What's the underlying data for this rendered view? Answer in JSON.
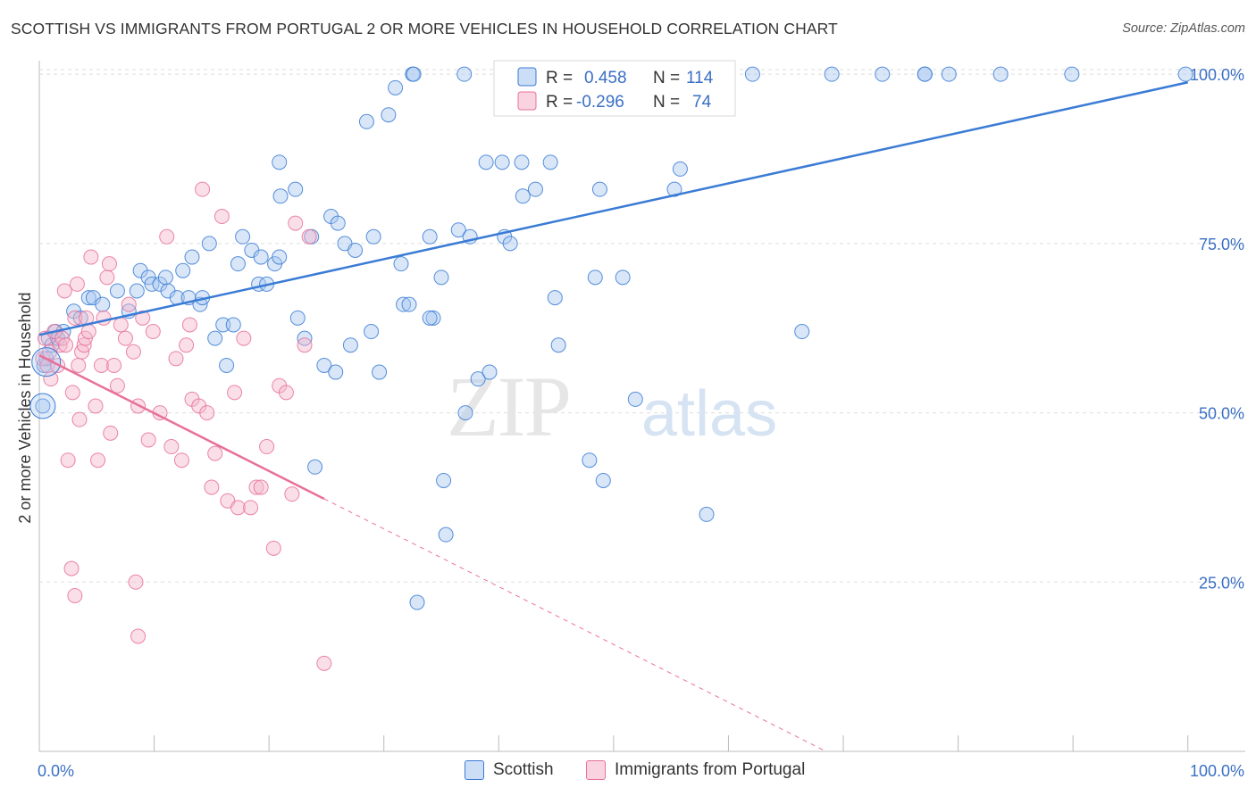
{
  "header": {
    "title": "SCOTTISH VS IMMIGRANTS FROM PORTUGAL 2 OR MORE VEHICLES IN HOUSEHOLD CORRELATION CHART",
    "source": "Source: ZipAtlas.com"
  },
  "watermark": {
    "zip": "ZIP",
    "atlas": "atlas"
  },
  "colors": {
    "blue": "#3a7bd5",
    "blue_fill": "#a8c8f0",
    "pink": "#e8709a",
    "pink_fill": "#f5b8cc",
    "axis_text": "#3a6fc4",
    "grid": "#dddddd"
  },
  "legend_top": [
    {
      "series": "Scottish",
      "r_label": "R =",
      "r_value": "0.458",
      "n_label": "N =",
      "n_value": "114"
    },
    {
      "series": "Immigrants from Portugal",
      "r_label": "R =",
      "r_value": "-0.296",
      "n_label": "N =",
      "n_value": "74"
    }
  ],
  "legend_bottom": [
    "Scottish",
    "Immigrants from Portugal"
  ],
  "chart_data": {
    "type": "scatter",
    "title": "SCOTTISH VS IMMIGRANTS FROM PORTUGAL 2 OR MORE VEHICLES IN HOUSEHOLD CORRELATION CHART",
    "xlabel": "",
    "ylabel": "2 or more Vehicles in Household",
    "xlim": [
      0,
      105
    ],
    "ylim": [
      0,
      102
    ],
    "x_tick_labels": [
      {
        "value": 0,
        "label": "0.0%"
      },
      {
        "value": 100,
        "label": "100.0%"
      }
    ],
    "x_minor_ticks": [
      0,
      10,
      20,
      30,
      40,
      50,
      60,
      70,
      80,
      90,
      100
    ],
    "y_tick_labels": [
      {
        "value": 25,
        "label": "25.0%"
      },
      {
        "value": 50,
        "label": "50.0%"
      },
      {
        "value": 75,
        "label": "75.0%"
      },
      {
        "value": 100,
        "label": "100.0%"
      }
    ],
    "grid": true,
    "legend_position": "top-center",
    "series": [
      {
        "name": "Scottish",
        "color": "#3a7bd5",
        "trend": {
          "x": [
            0,
            100
          ],
          "y": [
            61.5,
            98.8
          ],
          "dashed_from": null
        },
        "points": [
          [
            0.3,
            51
          ],
          [
            0.4,
            57
          ],
          [
            0.6,
            58
          ],
          [
            0.8,
            61
          ],
          [
            1.1,
            60
          ],
          [
            1.4,
            62
          ],
          [
            1.6,
            61
          ],
          [
            2.1,
            62
          ],
          [
            3.0,
            65
          ],
          [
            3.6,
            64
          ],
          [
            4.3,
            67
          ],
          [
            4.7,
            67
          ],
          [
            5.5,
            66
          ],
          [
            6.8,
            68
          ],
          [
            7.8,
            65
          ],
          [
            8.5,
            68
          ],
          [
            8.8,
            71
          ],
          [
            9.5,
            70
          ],
          [
            9.8,
            69
          ],
          [
            10.5,
            69
          ],
          [
            11.0,
            70
          ],
          [
            11.2,
            68
          ],
          [
            12.0,
            67
          ],
          [
            12.5,
            71
          ],
          [
            13.0,
            67
          ],
          [
            13.3,
            73
          ],
          [
            14.0,
            66
          ],
          [
            14.2,
            67
          ],
          [
            14.8,
            75
          ],
          [
            15.3,
            61
          ],
          [
            16.0,
            63
          ],
          [
            16.3,
            57
          ],
          [
            16.9,
            63
          ],
          [
            17.3,
            72
          ],
          [
            17.7,
            76
          ],
          [
            18.5,
            74
          ],
          [
            19.1,
            69
          ],
          [
            19.3,
            73
          ],
          [
            19.8,
            69
          ],
          [
            20.5,
            72
          ],
          [
            20.9,
            87
          ],
          [
            20.9,
            73
          ],
          [
            21.0,
            82
          ],
          [
            22.3,
            83
          ],
          [
            22.5,
            64
          ],
          [
            23.1,
            61
          ],
          [
            23.7,
            76
          ],
          [
            24.0,
            42
          ],
          [
            24.8,
            57
          ],
          [
            25.4,
            79
          ],
          [
            25.8,
            56
          ],
          [
            26.0,
            78
          ],
          [
            26.6,
            75
          ],
          [
            27.1,
            60
          ],
          [
            27.5,
            74
          ],
          [
            28.5,
            93
          ],
          [
            28.9,
            62
          ],
          [
            29.1,
            76
          ],
          [
            29.6,
            56
          ],
          [
            30.4,
            94
          ],
          [
            31.0,
            98
          ],
          [
            31.5,
            72
          ],
          [
            31.7,
            66
          ],
          [
            32.2,
            66
          ],
          [
            32.5,
            100
          ],
          [
            32.6,
            100
          ],
          [
            34.0,
            76
          ],
          [
            34.3,
            64
          ],
          [
            35.0,
            70
          ],
          [
            35.2,
            40
          ],
          [
            35.4,
            32
          ],
          [
            36.5,
            77
          ],
          [
            37.1,
            50
          ],
          [
            37.5,
            76
          ],
          [
            38.2,
            55
          ],
          [
            38.9,
            87
          ],
          [
            39.2,
            56
          ],
          [
            40.3,
            87
          ],
          [
            40.5,
            76
          ],
          [
            41.0,
            75
          ],
          [
            42.0,
            87
          ],
          [
            42.1,
            82
          ],
          [
            42.4,
            100
          ],
          [
            43.2,
            83
          ],
          [
            44.5,
            87
          ],
          [
            44.9,
            67
          ],
          [
            45.2,
            60
          ],
          [
            45.9,
            95
          ],
          [
            47.9,
            43
          ],
          [
            48.4,
            70
          ],
          [
            48.8,
            83
          ],
          [
            49.1,
            40
          ],
          [
            49.5,
            100
          ],
          [
            50.8,
            70
          ],
          [
            51.9,
            52
          ],
          [
            53.3,
            100
          ],
          [
            55.3,
            83
          ],
          [
            55.8,
            86
          ],
          [
            57.3,
            100
          ],
          [
            58.1,
            35
          ],
          [
            59.4,
            100
          ],
          [
            62.1,
            100
          ],
          [
            66.4,
            62
          ],
          [
            69.0,
            100
          ],
          [
            73.4,
            100
          ],
          [
            77.1,
            100
          ],
          [
            77.1,
            100
          ],
          [
            79.2,
            100
          ],
          [
            83.7,
            100
          ],
          [
            89.9,
            100
          ],
          [
            99.8,
            100
          ],
          [
            32.9,
            22
          ],
          [
            37.0,
            100
          ],
          [
            34.0,
            64
          ]
        ]
      },
      {
        "name": "Immigrants from Portugal",
        "color": "#e8709a",
        "trend": {
          "x": [
            0,
            24.8,
            68.5
          ],
          "y": [
            58.5,
            37.3,
            0
          ],
          "dashed_from": 24.8
        },
        "points": [
          [
            0.3,
            58
          ],
          [
            0.5,
            61
          ],
          [
            0.7,
            57
          ],
          [
            0.9,
            59
          ],
          [
            1.0,
            55
          ],
          [
            1.3,
            62
          ],
          [
            1.6,
            57
          ],
          [
            1.8,
            60
          ],
          [
            2.0,
            61
          ],
          [
            2.2,
            68
          ],
          [
            2.3,
            60
          ],
          [
            2.5,
            43
          ],
          [
            2.8,
            27
          ],
          [
            2.9,
            53
          ],
          [
            3.1,
            64
          ],
          [
            3.3,
            69
          ],
          [
            3.4,
            57
          ],
          [
            3.5,
            49
          ],
          [
            3.7,
            59
          ],
          [
            3.9,
            60
          ],
          [
            4.0,
            61
          ],
          [
            4.1,
            64
          ],
          [
            4.3,
            62
          ],
          [
            4.5,
            73
          ],
          [
            4.9,
            51
          ],
          [
            5.1,
            43
          ],
          [
            5.4,
            57
          ],
          [
            5.6,
            64
          ],
          [
            5.9,
            70
          ],
          [
            6.2,
            47
          ],
          [
            6.5,
            57
          ],
          [
            6.8,
            54
          ],
          [
            7.1,
            63
          ],
          [
            7.5,
            61
          ],
          [
            7.8,
            66
          ],
          [
            8.2,
            59
          ],
          [
            8.6,
            51
          ],
          [
            9.0,
            64
          ],
          [
            9.5,
            46
          ],
          [
            9.9,
            62
          ],
          [
            10.5,
            50
          ],
          [
            11.1,
            76
          ],
          [
            11.5,
            45
          ],
          [
            11.9,
            58
          ],
          [
            12.4,
            43
          ],
          [
            12.8,
            60
          ],
          [
            13.1,
            63
          ],
          [
            13.3,
            52
          ],
          [
            13.9,
            51
          ],
          [
            14.2,
            83
          ],
          [
            14.6,
            50
          ],
          [
            15.0,
            39
          ],
          [
            15.3,
            44
          ],
          [
            15.9,
            79
          ],
          [
            16.4,
            37
          ],
          [
            17.0,
            53
          ],
          [
            17.3,
            36
          ],
          [
            17.8,
            61
          ],
          [
            18.4,
            36
          ],
          [
            18.9,
            39
          ],
          [
            19.3,
            39
          ],
          [
            19.8,
            45
          ],
          [
            20.4,
            30
          ],
          [
            20.9,
            54
          ],
          [
            21.5,
            53
          ],
          [
            22.0,
            38
          ],
          [
            22.3,
            78
          ],
          [
            23.1,
            60
          ],
          [
            23.5,
            76
          ],
          [
            24.8,
            13
          ],
          [
            3.1,
            23
          ],
          [
            8.4,
            25
          ],
          [
            8.6,
            17
          ],
          [
            6.1,
            72
          ]
        ]
      }
    ]
  }
}
